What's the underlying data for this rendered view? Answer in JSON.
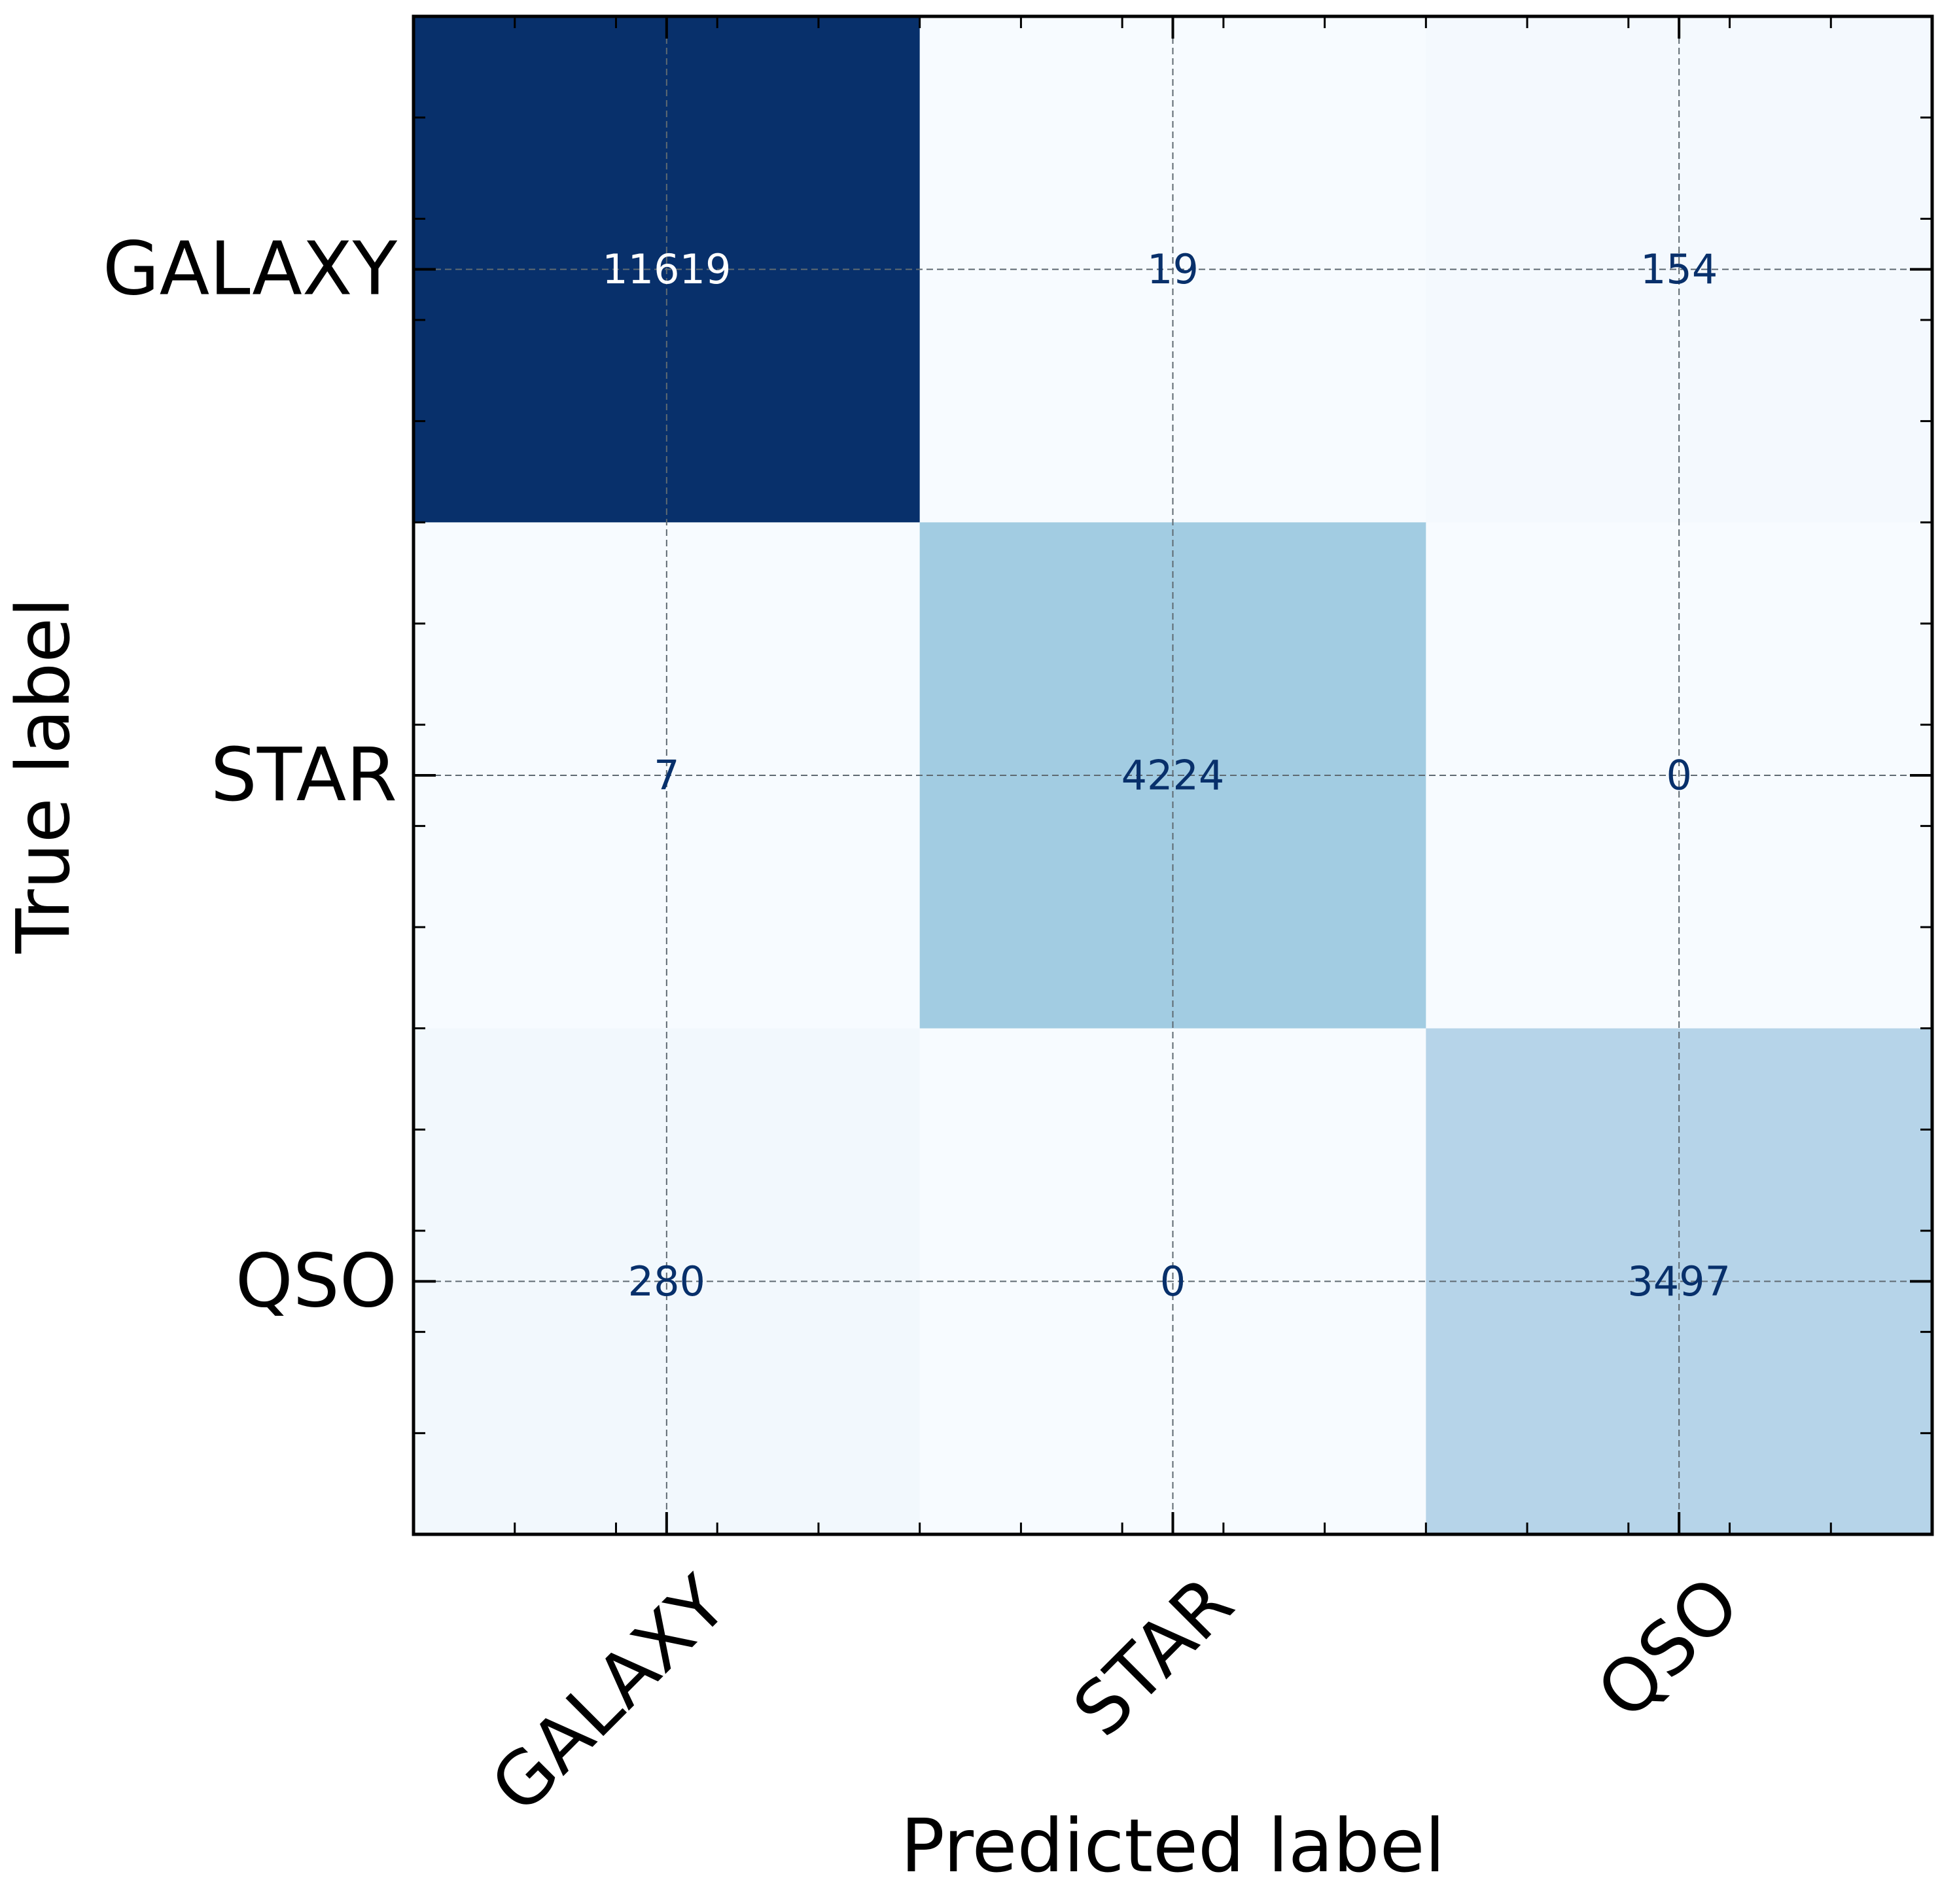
{
  "chart_data": {
    "type": "heatmap",
    "title": "",
    "xlabel": "Predicted label",
    "ylabel": "True label",
    "x_categories": [
      "GALAXY",
      "STAR",
      "QSO"
    ],
    "y_categories": [
      "GALAXY",
      "STAR",
      "QSO"
    ],
    "matrix": [
      [
        11619,
        19,
        154
      ],
      [
        7,
        4224,
        0
      ],
      [
        280,
        0,
        3497
      ]
    ],
    "colormap": "Blues",
    "color_low": "#f7fbff",
    "color_high": "#08306b",
    "text_color_dark_cell": "#ffffff",
    "text_color_light_cell": "#08306b",
    "grid": true,
    "grid_style": "dashed"
  }
}
